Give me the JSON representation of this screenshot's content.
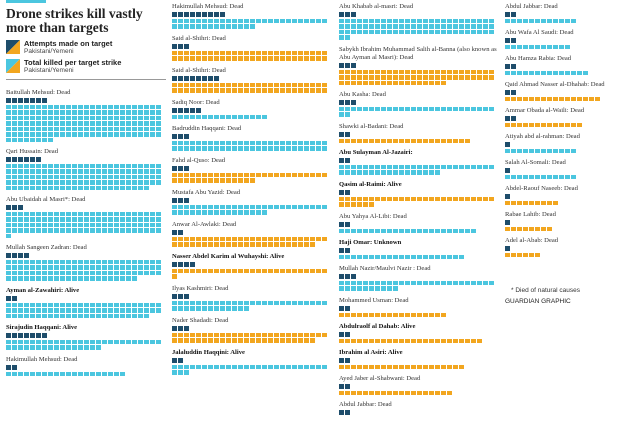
{
  "title": "Drone strikes kill vastly more than targets",
  "legend": {
    "attempts_label": "Attempts made on target",
    "attempts_sub": "Pakistani/Yemeni",
    "killed_label": "Total killed per target strike",
    "killed_sub": "Pakistani/Yemeni"
  },
  "footnote": "* Died of natural causes",
  "credit": "GUARDIAN GRAPHIC",
  "colors": {
    "pakistan_attempts": "#1e4d6b",
    "pakistan_killed": "#4bc6df",
    "yemen_attempts": "#1e4d6b",
    "yemen_killed": "#f2a61f",
    "accent_bar": "#4bc6df"
  },
  "chart_data": {
    "type": "table",
    "title": "Drone strikes kill vastly more than targets",
    "series": [
      {
        "name": "Attempts made on target"
      },
      {
        "name": "Total killed per target strike"
      }
    ],
    "columns": [
      [
        {
          "name": "Baitullah Mehsud: Dead",
          "country": "Pakistan",
          "attempts": 7,
          "killed": 164
        },
        {
          "name": "Qari Hussain: Dead",
          "country": "Pakistan",
          "attempts": 6,
          "killed": 128
        },
        {
          "name": "Abu Ubaidah al Masri*: Dead",
          "country": "Pakistan",
          "attempts": 3,
          "killed": 105
        },
        {
          "name": "Mullah Sangeen Zadran: Dead",
          "country": "Pakistan",
          "attempts": 4,
          "killed": 100
        },
        {
          "name": "Ayman al-Zawahiri: Alive",
          "country": "Pakistan",
          "attempts": 2,
          "killed": 76,
          "bold": true
        },
        {
          "name": "Sirajudin Haqqani: Alive",
          "country": "Pakistan",
          "attempts": 7,
          "killed": 42,
          "bold": true
        },
        {
          "name": "Hakimullah Mehsud: Dead",
          "country": "Pakistan",
          "attempts": 2,
          "killed": 20
        }
      ],
      [
        {
          "name": "Hakimullah Mehsud: Dead",
          "country": "Pakistan",
          "attempts": 9,
          "killed": 40
        },
        {
          "name": "Said al-Shihri: Dead",
          "country": "Yemen",
          "attempts": 3,
          "killed": 52
        },
        {
          "name": "Said al-Shihri: Dead",
          "country": "Yemen",
          "attempts": 8,
          "killed": 52
        },
        {
          "name": "Sadiq Noor: Dead",
          "country": "Pakistan",
          "attempts": 5,
          "killed": 16
        },
        {
          "name": "Badruddin Haqqani: Dead",
          "country": "Pakistan",
          "attempts": 3,
          "killed": 52
        },
        {
          "name": "Fahd al-Quso: Dead",
          "country": "Yemen",
          "attempts": 3,
          "killed": 40
        },
        {
          "name": "Mustafa Abu Yazid: Dead",
          "country": "Pakistan",
          "attempts": 3,
          "killed": 42
        },
        {
          "name": "Anwar Al-Awlaki: Dead",
          "country": "Yemen",
          "attempts": 2,
          "killed": 50
        },
        {
          "name": "Nasser Abdel Karim al Wuhayshi: Alive",
          "country": "Yemen",
          "attempts": 4,
          "killed": 27,
          "bold": true
        },
        {
          "name": "Ilyas Kashmiri: Dead",
          "country": "Pakistan",
          "attempts": 3,
          "killed": 39
        },
        {
          "name": "Nader Shadadi: Dead",
          "country": "Yemen",
          "attempts": 3,
          "killed": 50
        },
        {
          "name": "Jalaluddin Haqqini: Alive",
          "country": "Pakistan",
          "attempts": 2,
          "killed": 29,
          "bold": true
        }
      ],
      [
        {
          "name": "Abu Khabab al-masri: Dead",
          "country": "Pakistan",
          "attempts": 3,
          "killed": 80
        },
        {
          "name": "Sabykh Ibrahim Muhammad Salih al-Banna (also known as Abu Ayman al Masri): Dead",
          "country": "Yemen",
          "attempts": 3,
          "killed": 70,
          "multiline": true
        },
        {
          "name": "Abu Kasha: Dead",
          "country": "Pakistan",
          "attempts": 3,
          "killed": 28
        },
        {
          "name": "Shawki al-Badani: Dead",
          "country": "Yemen",
          "attempts": 2,
          "killed": 22
        },
        {
          "name": "Abu Sulayman Al-Jazairi:",
          "country": "Pakistan",
          "attempts": 2,
          "killed": 43,
          "bold": true
        },
        {
          "name": "Qasim al-Raimi: Alive",
          "country": "Yemen",
          "attempts": 2,
          "killed": 32,
          "bold": true
        },
        {
          "name": "Abu Yahya Al-Libi: Dead",
          "country": "Pakistan",
          "attempts": 2,
          "killed": 23
        },
        {
          "name": "Haji Omar: Unknown",
          "country": "Pakistan",
          "attempts": 2,
          "killed": 21,
          "bold": true
        },
        {
          "name": "Mullah Nazir/Maulvi Nazir : Dead",
          "country": "Pakistan",
          "attempts": 3,
          "killed": 36
        },
        {
          "name": "Mohammed Usman: Dead",
          "country": "Yemen",
          "attempts": 2,
          "killed": 18
        },
        {
          "name": "Abdulraolf al Dahab: Alive",
          "country": "Yemen",
          "attempts": 2,
          "killed": 24,
          "bold": true
        },
        {
          "name": "Ibrahim al Asiri: Alive",
          "country": "Yemen",
          "attempts": 2,
          "killed": 21,
          "bold": true
        },
        {
          "name": "Ayed Jaber al-Shabwani: Dead",
          "country": "Yemen",
          "attempts": 2,
          "killed": 19
        },
        {
          "name": "Abdul Jabbar: Dead",
          "country": "Pakistan",
          "attempts": 2,
          "killed": 0
        }
      ],
      [
        {
          "name": "Abdul Jabbar: Dead",
          "country": "Pakistan",
          "attempts": 2,
          "killed": 12
        },
        {
          "name": "Abu Wafa Al Saudi: Dead",
          "country": "Pakistan",
          "attempts": 2,
          "killed": 11
        },
        {
          "name": "Abu Hamza Rabia: Dead",
          "country": "Pakistan",
          "attempts": 2,
          "killed": 14
        },
        {
          "name": "Qaid Ahmad Nasser al-Dhahab: Dead",
          "country": "Yemen",
          "attempts": 2,
          "killed": 16
        },
        {
          "name": "Ammar Obada al-Waili: Dead",
          "country": "Yemen",
          "attempts": 2,
          "killed": 13
        },
        {
          "name": "Atiyah abd al-rahman: Dead",
          "country": "Pakistan",
          "attempts": 1,
          "killed": 12
        },
        {
          "name": "Salah Al-Somali: Dead",
          "country": "Pakistan",
          "attempts": 1,
          "killed": 12
        },
        {
          "name": "Abdel-Raouf Naseeb: Dead",
          "country": "Yemen",
          "attempts": 1,
          "killed": 9
        },
        {
          "name": "Rabae Lahib: Dead",
          "country": "Yemen",
          "attempts": 1,
          "killed": 8
        },
        {
          "name": "Adel al-Abab: Dead",
          "country": "Yemen",
          "attempts": 1,
          "killed": 6
        }
      ]
    ]
  }
}
